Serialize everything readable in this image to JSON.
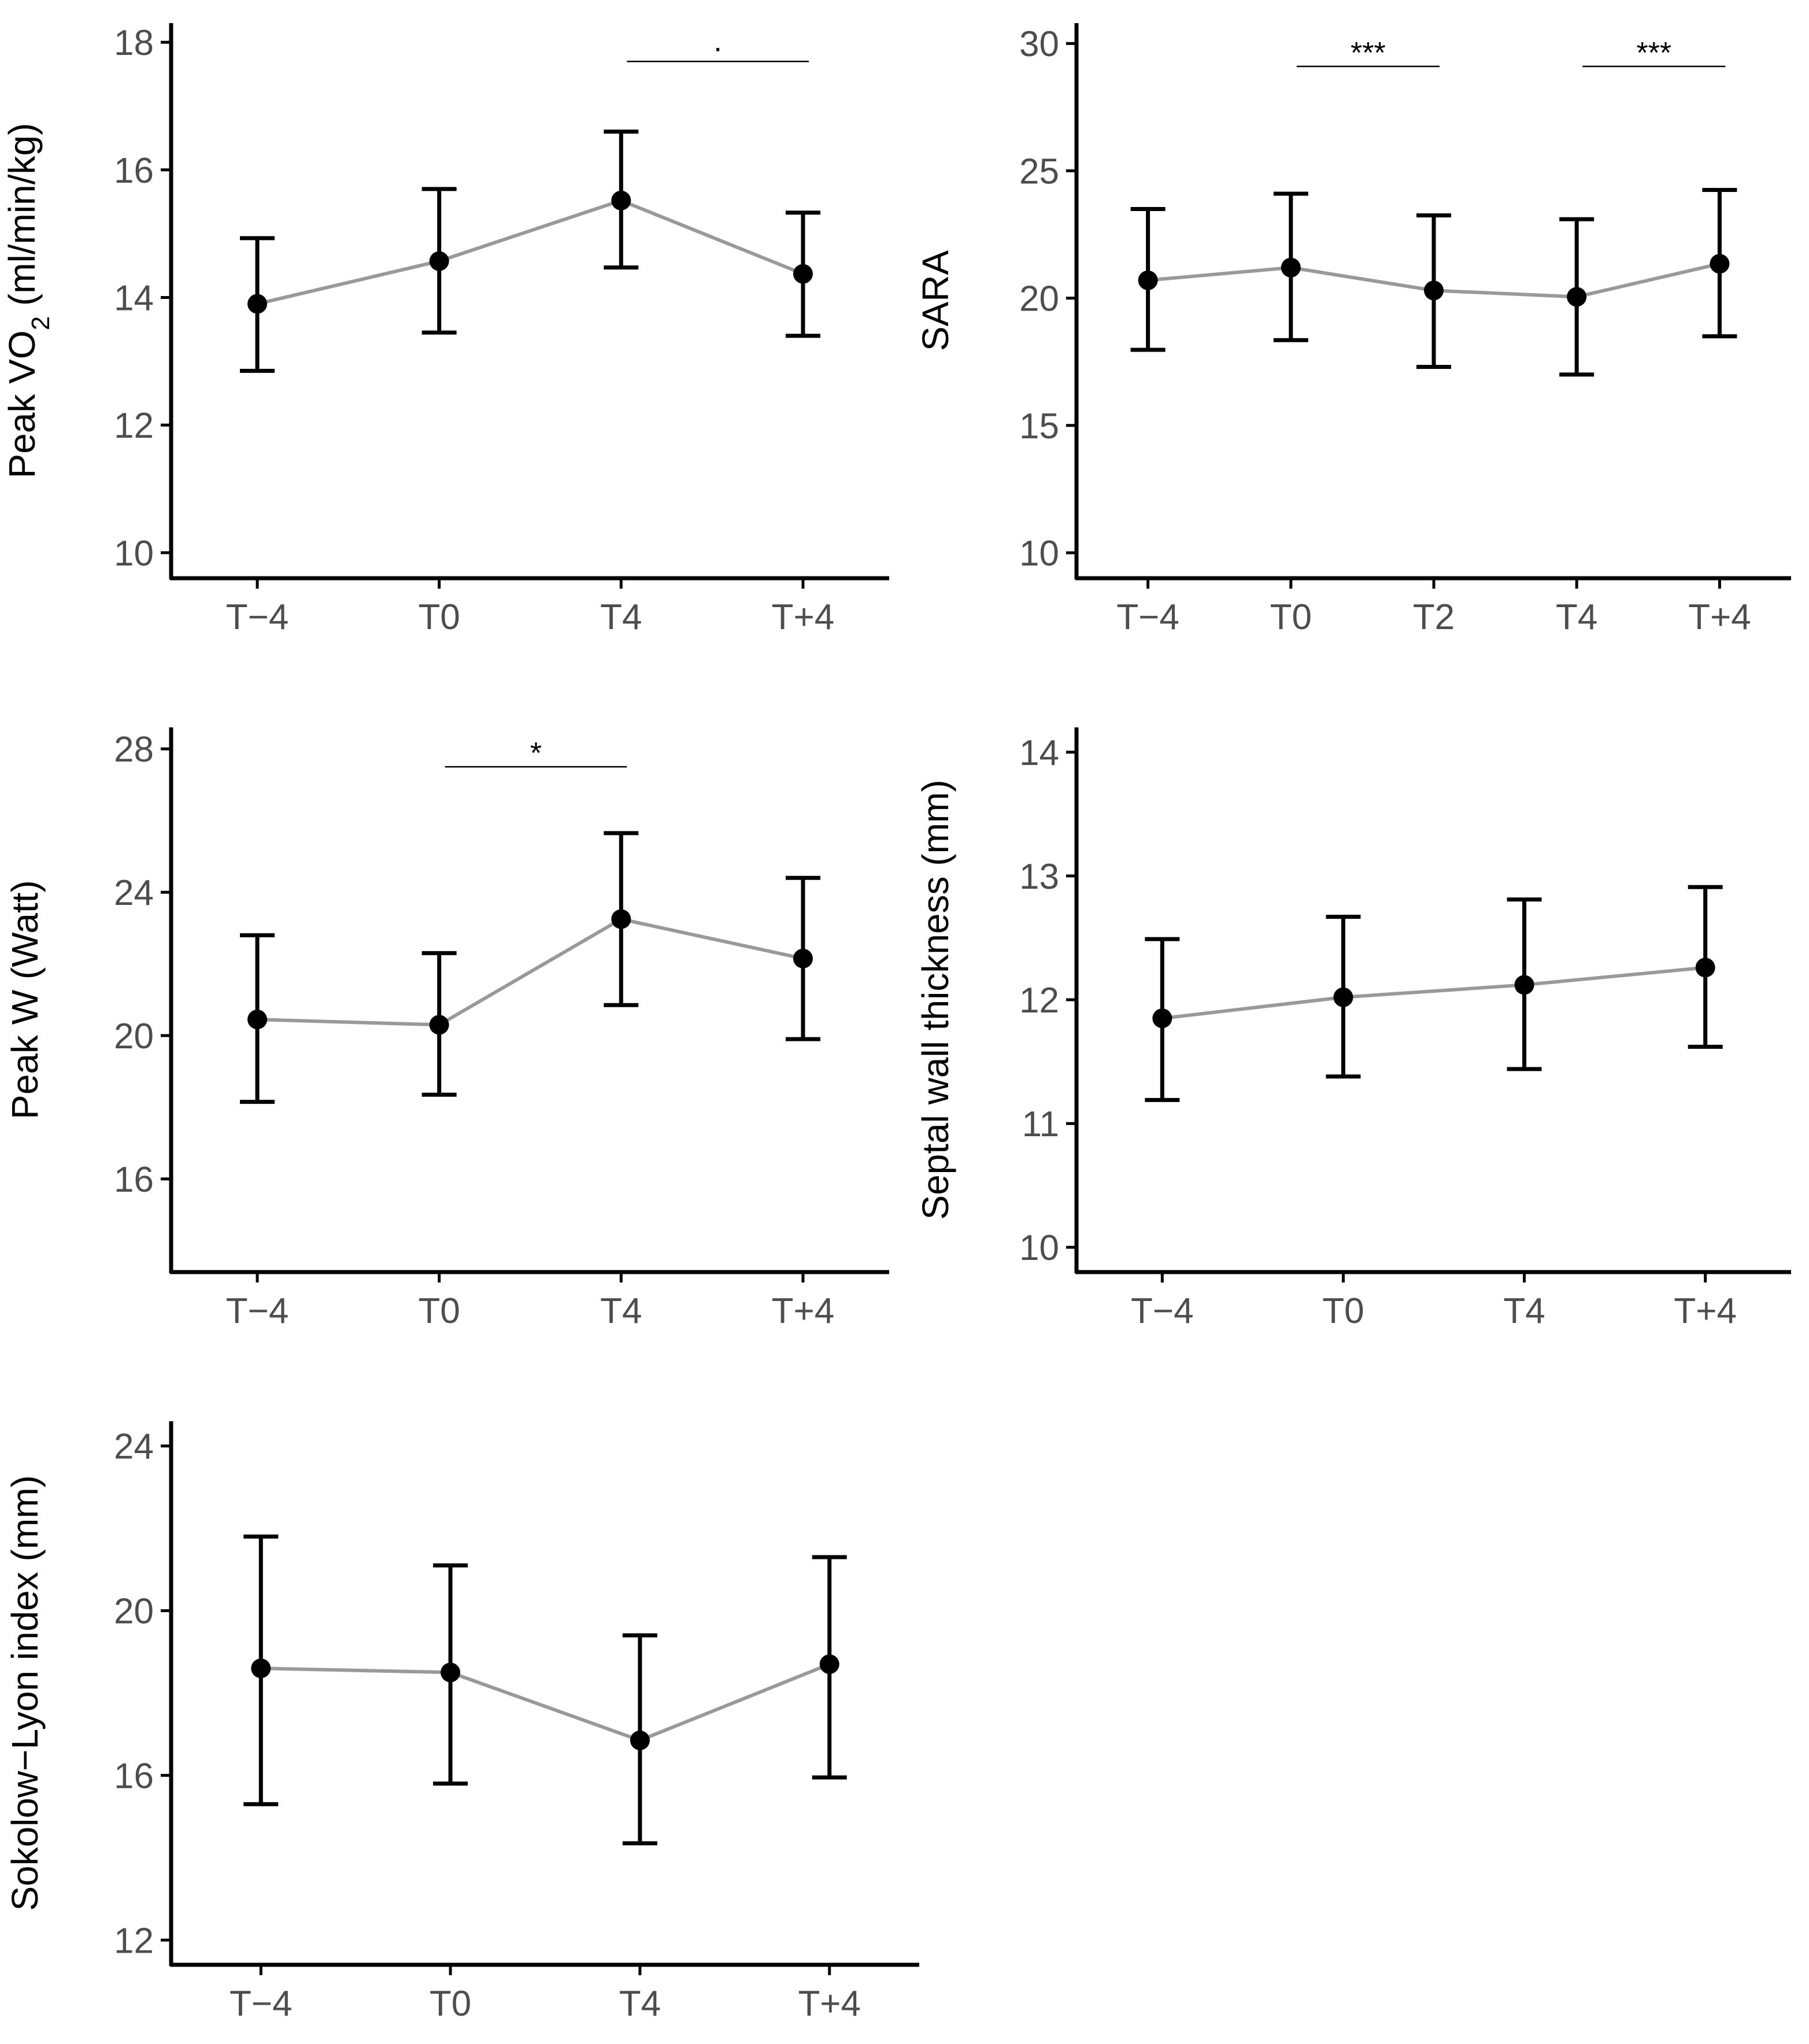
{
  "colors": {
    "line": "#999999",
    "point": "#000000",
    "axis": "#000000",
    "tick_text": "#4d4d4d",
    "background": "#ffffff"
  },
  "chart_data": [
    {
      "id": "peak-vo2",
      "type": "line",
      "ylabel_parts": [
        "Peak VO",
        "2",
        " (ml/min/kg)"
      ],
      "categories": [
        "T−4",
        "T0",
        "T4",
        "T+4"
      ],
      "yticks": [
        "10",
        "12",
        "14",
        "16",
        "18"
      ],
      "ylim": [
        9.6,
        18.3
      ],
      "series": [
        {
          "name": "Peak VO2",
          "values": [
            13.9,
            14.57,
            15.52,
            14.37
          ],
          "lower": [
            12.85,
            13.45,
            14.47,
            13.4
          ],
          "upper": [
            14.93,
            15.7,
            16.6,
            15.33
          ]
        }
      ],
      "significance": [
        {
          "from": 2,
          "to": 3,
          "label": "·",
          "y": 17.7
        }
      ]
    },
    {
      "id": "sara",
      "type": "line",
      "ylabel": "SARA",
      "categories": [
        "T−4",
        "T0",
        "T2",
        "T4",
        "T+4"
      ],
      "yticks": [
        "10",
        "15",
        "20",
        "25",
        "30"
      ],
      "ylim": [
        9.0,
        30.8
      ],
      "series": [
        {
          "name": "SARA",
          "values": [
            20.7,
            21.2,
            20.3,
            20.05,
            21.35
          ],
          "lower": [
            17.97,
            18.35,
            17.3,
            17.0,
            18.5
          ],
          "upper": [
            23.5,
            24.1,
            23.25,
            23.1,
            24.25
          ]
        }
      ],
      "significance": [
        {
          "from": 1,
          "to": 2,
          "label": "***",
          "y": 29.1
        },
        {
          "from": 3,
          "to": 4,
          "label": "***",
          "y": 29.1
        }
      ]
    },
    {
      "id": "peak-w",
      "type": "line",
      "ylabel": "Peak W (Watt)",
      "categories": [
        "T−4",
        "T0",
        "T4",
        "T+4"
      ],
      "yticks": [
        "16",
        "20",
        "24",
        "28"
      ],
      "ylim": [
        13.4,
        28.6
      ],
      "series": [
        {
          "name": "Peak W",
          "values": [
            20.45,
            20.3,
            23.25,
            22.15
          ],
          "lower": [
            18.15,
            18.35,
            20.85,
            19.9
          ],
          "upper": [
            22.8,
            22.3,
            25.65,
            24.4
          ]
        }
      ],
      "significance": [
        {
          "from": 1,
          "to": 2,
          "label": "*",
          "y": 27.5
        }
      ]
    },
    {
      "id": "septal",
      "type": "line",
      "ylabel": "Septal wall thickness (mm)",
      "categories": [
        "T−4",
        "T0",
        "T4",
        "T+4"
      ],
      "yticks": [
        "10",
        "11",
        "12",
        "13",
        "14"
      ],
      "ylim": [
        9.8,
        14.2
      ],
      "series": [
        {
          "name": "Septal wall thickness",
          "values": [
            11.85,
            12.02,
            12.12,
            12.26
          ],
          "lower": [
            11.19,
            11.38,
            11.44,
            11.62
          ],
          "upper": [
            12.49,
            12.67,
            12.81,
            12.91
          ]
        }
      ],
      "significance": []
    },
    {
      "id": "sokolow",
      "type": "line",
      "ylabel": "Sokolow−Lyon index (mm)",
      "categories": [
        "T−4",
        "T0",
        "T4",
        "T+4"
      ],
      "yticks": [
        "12",
        "16",
        "20",
        "24"
      ],
      "ylim": [
        11.4,
        24.6
      ],
      "series": [
        {
          "name": "Sokolow-Lyon index",
          "values": [
            18.6,
            18.5,
            16.85,
            18.7
          ],
          "lower": [
            15.3,
            15.8,
            14.35,
            15.95
          ],
          "upper": [
            21.8,
            21.1,
            19.4,
            21.3
          ]
        }
      ],
      "significance": []
    }
  ]
}
